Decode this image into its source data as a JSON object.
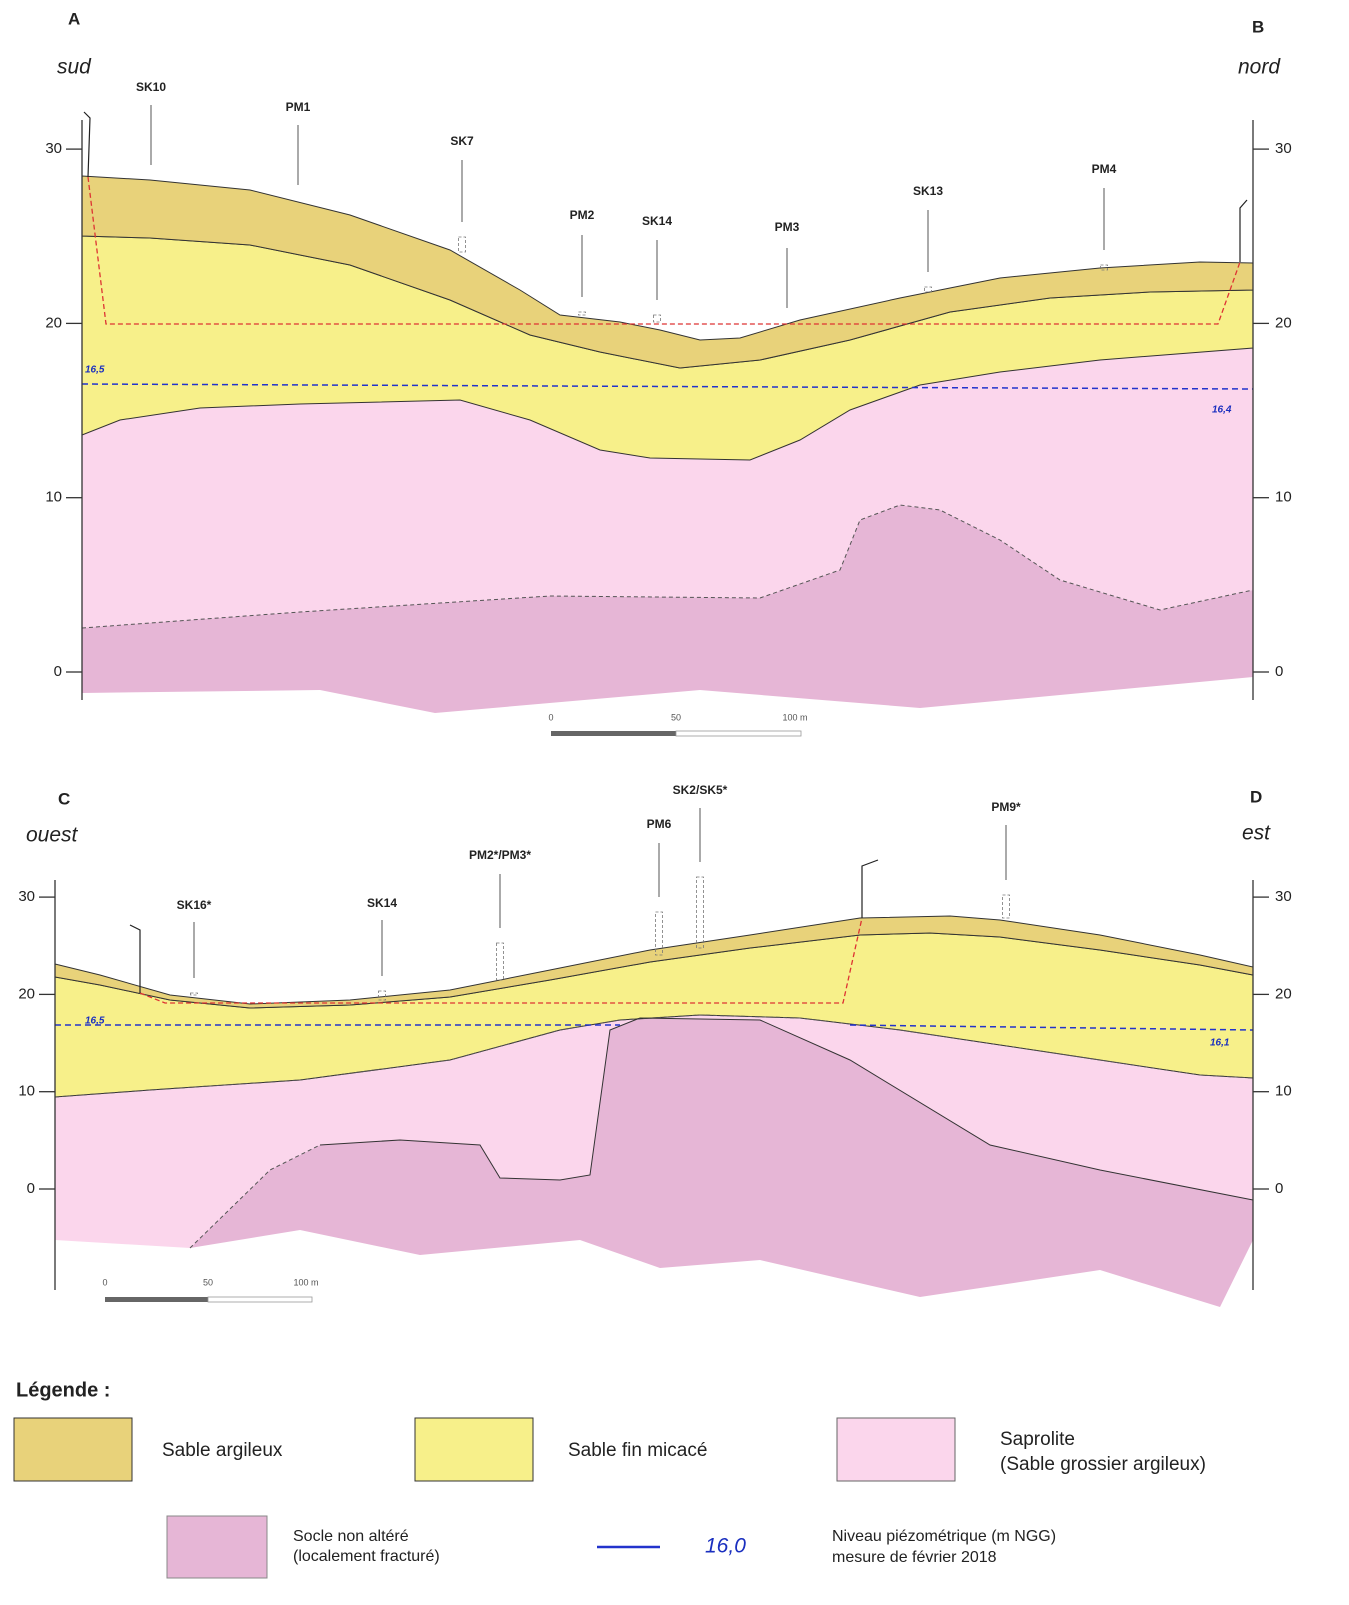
{
  "sections": [
    {
      "left_letter": "A",
      "right_letter": "B",
      "left_direction": "sud",
      "right_direction": "nord",
      "boreholes": [
        "SK10",
        "PM1",
        "SK7",
        "PM2",
        "SK14",
        "PM3",
        "SK13",
        "PM4"
      ],
      "yticks": [
        0,
        10,
        20,
        30
      ],
      "water_levels": [
        "16,5",
        "16,4"
      ],
      "scale_bar": [
        "0",
        "50",
        "100 m"
      ]
    },
    {
      "left_letter": "C",
      "right_letter": "D",
      "left_direction": "ouest",
      "right_direction": "est",
      "boreholes": [
        "SK16*",
        "SK14",
        "PM2*/PM3*",
        "PM6",
        "SK2/SK5*",
        "PM9*"
      ],
      "yticks": [
        0,
        10,
        20,
        30
      ],
      "water_levels": [
        "16,5",
        "16,1"
      ],
      "scale_bar": [
        "0",
        "50",
        "100 m"
      ]
    }
  ],
  "legend": {
    "title": "Légende :",
    "items": [
      {
        "lines": [
          "Sable argileux"
        ]
      },
      {
        "lines": [
          "Sable fin micacé"
        ]
      },
      {
        "lines": [
          "Saprolite",
          "(Sable grossier argileux)"
        ]
      },
      {
        "lines": [
          "Socle non altéré",
          "(localement fracturé)"
        ]
      },
      {
        "sample": "16,0",
        "lines": [
          "Niveau piézométrique (m NGG)",
          "mesure de février 2018"
        ]
      }
    ]
  }
}
